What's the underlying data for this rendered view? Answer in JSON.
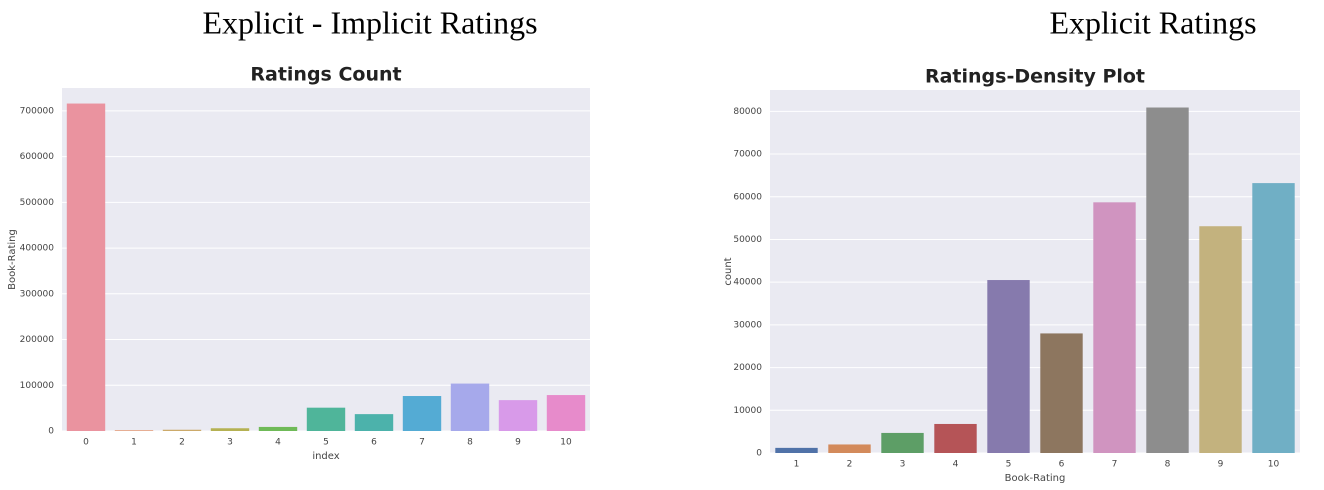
{
  "chart_data": [
    {
      "type": "bar",
      "heading": "Explicit - Implicit Ratings",
      "title": "Ratings Count",
      "xlabel": "index",
      "ylabel": "Book-Rating",
      "categories": [
        "0",
        "1",
        "2",
        "3",
        "4",
        "5",
        "6",
        "7",
        "8",
        "9",
        "10"
      ],
      "values": [
        716000,
        1770,
        2760,
        6000,
        8900,
        51000,
        36900,
        76500,
        103700,
        67500,
        78600
      ],
      "colors": [
        "#ea939f",
        "#e5a07f",
        "#ccaa6a",
        "#b5b153",
        "#6fba58",
        "#4fb59a",
        "#4cb2ab",
        "#54abd4",
        "#a6a9eb",
        "#d89ae9",
        "#e78bcb"
      ],
      "ylim": [
        0,
        750000
      ],
      "yticks": [
        0,
        100000,
        200000,
        300000,
        400000,
        500000,
        600000,
        700000
      ],
      "grid": true
    },
    {
      "type": "bar",
      "heading": "Explicit Ratings",
      "title": "Ratings-Density Plot",
      "xlabel": "Book-Rating",
      "ylabel": "count",
      "categories": [
        "1",
        "2",
        "3",
        "4",
        "5",
        "6",
        "7",
        "8",
        "9",
        "10"
      ],
      "values": [
        1200,
        2000,
        4700,
        6800,
        40500,
        28000,
        58700,
        80900,
        53100,
        63200
      ],
      "colors": [
        "#5072a8",
        "#d38a5b",
        "#5d9e66",
        "#b55457",
        "#867aad",
        "#8d765f",
        "#d094c0",
        "#8d8d8d",
        "#c3b27e",
        "#70afc5"
      ],
      "ylim": [
        0,
        85000
      ],
      "yticks": [
        0,
        10000,
        20000,
        30000,
        40000,
        50000,
        60000,
        70000,
        80000
      ],
      "grid": true
    }
  ]
}
